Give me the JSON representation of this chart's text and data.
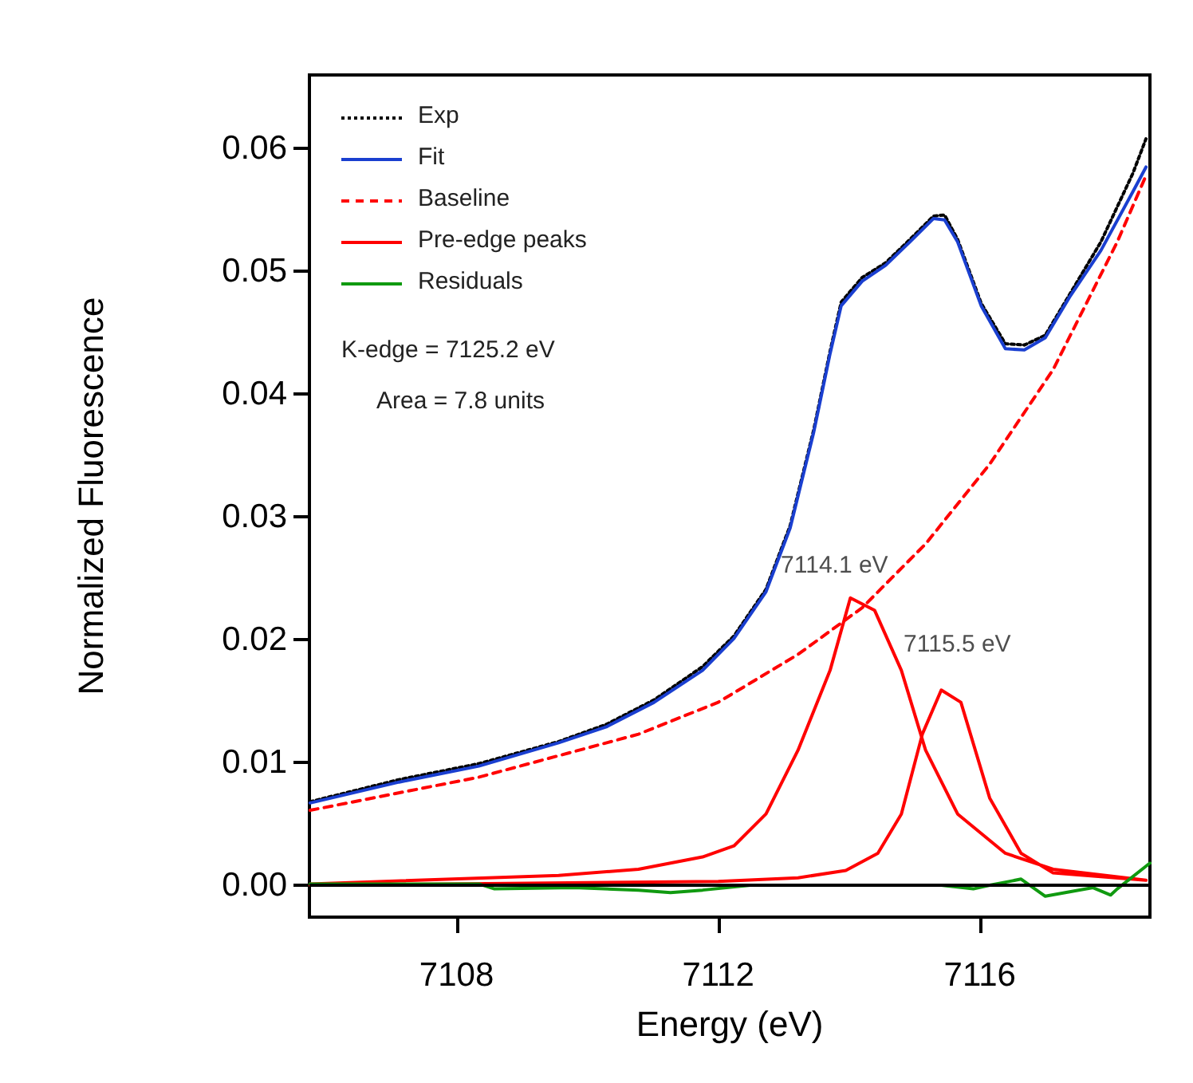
{
  "chart_data": {
    "type": "line",
    "xlabel": "Energy (eV)",
    "ylabel": "Normalized Fluorescence",
    "xlim": [
      7105.75,
      7118.6
    ],
    "xticks": [
      7108,
      7112,
      7116
    ],
    "ylim": [
      -0.0026,
      0.066
    ],
    "yticks": [
      {
        "value": 0,
        "label": "0.00"
      },
      0.01,
      0.02,
      0.03,
      0.04,
      0.05,
      0.06
    ],
    "grid": false,
    "legend": "top left",
    "marker": "none",
    "annotations": [
      "K-edge = 7125.2 eV",
      "Area = 7.8 units",
      {
        "text": "7114.1 eV",
        "x": 7114.02,
        "y": 0.0234
      },
      {
        "text": "7115.5 eV",
        "x": 7115.41,
        "y": 0.0159
      }
    ],
    "ref_lines": [
      {
        "axis": "y",
        "value": 0,
        "color": "#000000",
        "line_style": "solid"
      }
    ],
    "series": [
      {
        "name": "Exp",
        "color": "#000000",
        "line_style": "dotted",
        "x": [
          7105.76,
          7107.12,
          7108.34,
          7109.56,
          7110.29,
          7111.02,
          7111.76,
          7112.24,
          7112.73,
          7113.1,
          7113.46,
          7113.71,
          7113.88,
          7114.2,
          7114.56,
          7114.93,
          7115.29,
          7115.46,
          7115.66,
          7116.02,
          7116.39,
          7116.68,
          7117.0,
          7117.37,
          7117.85,
          7118.34,
          7118.54
        ],
        "values": [
          0.0068,
          0.0086,
          0.0099,
          0.0117,
          0.0131,
          0.0151,
          0.0178,
          0.0203,
          0.0241,
          0.0293,
          0.0371,
          0.0435,
          0.0475,
          0.0495,
          0.0507,
          0.0526,
          0.0545,
          0.0546,
          0.0526,
          0.0474,
          0.0441,
          0.044,
          0.0448,
          0.0481,
          0.0524,
          0.058,
          0.0608
        ]
      },
      {
        "name": "Fit",
        "color": "#1a3fd0",
        "line_style": "solid",
        "x": [
          7105.76,
          7107.12,
          7108.34,
          7109.56,
          7110.29,
          7111.02,
          7111.76,
          7112.24,
          7112.73,
          7113.1,
          7113.46,
          7113.71,
          7113.88,
          7114.2,
          7114.56,
          7114.93,
          7115.29,
          7115.46,
          7115.66,
          7116.02,
          7116.39,
          7116.68,
          7117.0,
          7117.37,
          7117.85,
          7118.34,
          7118.54
        ],
        "values": [
          0.0067,
          0.0084,
          0.0097,
          0.0116,
          0.0129,
          0.0149,
          0.0175,
          0.0201,
          0.0239,
          0.0291,
          0.0369,
          0.0433,
          0.0472,
          0.0492,
          0.0505,
          0.0524,
          0.0543,
          0.0542,
          0.0524,
          0.0472,
          0.0437,
          0.0436,
          0.0446,
          0.0479,
          0.0517,
          0.0565,
          0.0585
        ]
      },
      {
        "name": "Baseline",
        "color": "#ff0000",
        "line_style": "dashed",
        "x": [
          7105.76,
          7108.34,
          7110.78,
          7112.0,
          7113.22,
          7114.2,
          7115.17,
          7116.15,
          7117.12,
          7118.1,
          7118.54
        ],
        "values": [
          0.0061,
          0.0088,
          0.0123,
          0.0149,
          0.0188,
          0.0226,
          0.0278,
          0.0343,
          0.042,
          0.0524,
          0.0578
        ]
      },
      {
        "name": "Pre-edge peaks",
        "color": "#ff0000",
        "line_style": "solid",
        "x": [
          7105.76,
          7109.56,
          7110.78,
          7111.76,
          7112.24,
          7112.73,
          7113.22,
          7113.71,
          7114.02,
          7114.39,
          7114.8,
          7115.17,
          7115.66,
          7116.39,
          7117.12,
          7118.54,
          null,
          7105.76,
          7112.0,
          7113.22,
          7113.95,
          7114.44,
          7114.8,
          7115.12,
          7115.41,
          7115.71,
          7116.15,
          7116.63,
          7117.12,
          7118.54
        ],
        "values": [
          0.0001,
          0.0008,
          0.0013,
          0.0023,
          0.0032,
          0.0058,
          0.011,
          0.0175,
          0.0234,
          0.0224,
          0.0175,
          0.011,
          0.0058,
          0.0026,
          0.0013,
          0.0004,
          null,
          0,
          0.0003,
          0.0006,
          0.0012,
          0.0026,
          0.0058,
          0.0123,
          0.0159,
          0.0149,
          0.0071,
          0.0026,
          0.001,
          0.0004
        ]
      },
      {
        "name": "Residuals",
        "color": "#109a10",
        "line_style": "solid",
        "x": [
          7105.76,
          7108.34,
          7108.58,
          7109.8,
          7110.78,
          7111.27,
          7111.76,
          7112.49,
          7114.68,
          7115.41,
          7115.9,
          7116.15,
          7116.44,
          7116.63,
          7117.0,
          7117.73,
          7118.0,
          7118.1,
          7118.6
        ],
        "values": [
          0.0001,
          0.0001,
          -0.0003,
          -0.0002,
          -0.0004,
          -0.0006,
          -0.0004,
          0,
          0,
          0,
          -0.0003,
          0,
          0.0003,
          0.0005,
          -0.0009,
          -0.0002,
          -0.0008,
          -0.0003,
          0.0018
        ]
      }
    ]
  }
}
